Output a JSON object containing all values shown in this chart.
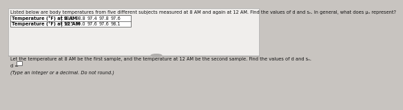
{
  "title_line": "Listed below are body temperatures from five different subjects measured at 8 AM and again at 12 AM. Find the values of d and sₙ. In general, what does μₙ represent?",
  "row1_label": "Temperature (°F) at 8 AM",
  "row2_label": "Temperature (°F) at 12 AM",
  "row1_values": [
    "98.1",
    "98.8",
    "97.4",
    "97.8",
    "97.6"
  ],
  "row2_values": [
    "98.5",
    "99.0",
    "97.6",
    "97.6",
    "98.1"
  ],
  "middle_text": "Let the temperature at 8 AM be the first sample, and the temperature at 12 AM be the second sample. Find the values of d and sₙ.",
  "bottom_label": "d =",
  "bottom_note": "(Type an integer or a decimal. Do not round.)",
  "bg_color": "#c8c4c0",
  "top_panel_bg": "#f0eeec",
  "bottom_panel_bg": "#c8c4c0",
  "table_bg": "white",
  "table_border": "#444444",
  "text_color": "#111111",
  "divider_color": "#888888",
  "oval_color": "#b0aeac",
  "font_size_title": 4.8,
  "font_size_table": 4.8,
  "font_size_mid": 4.8,
  "font_size_bottom": 4.8
}
